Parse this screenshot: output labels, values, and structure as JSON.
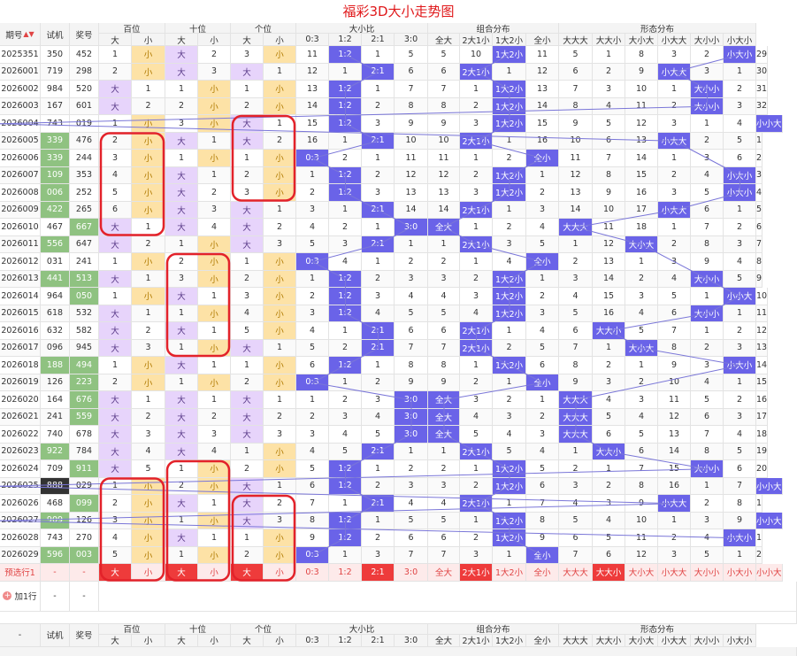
{
  "title": "福彩3D大小走势图",
  "header": {
    "qihao": "期号",
    "shiji": "试机",
    "jianghao": "奖号",
    "bai": "百位",
    "shi": "十位",
    "ge": "个位",
    "dxb": "大小比",
    "zuhe": "组合分布",
    "xingtai": "形态分布",
    "sub_da": "大",
    "sub_xiao": "小",
    "dxb_cols": [
      "0:3",
      "1:2",
      "2:1",
      "3:0"
    ],
    "zuhe_cols": [
      "全大",
      "2大1小",
      "1大2小",
      "全小"
    ],
    "xingtai_cols": [
      "大大大",
      "大大小",
      "大小大",
      "小大大",
      "大小小",
      "小大小",
      "小小大",
      "小小小"
    ]
  },
  "colors": {
    "blue": "#6a63e8",
    "purple": "#e7d4fb",
    "orange": "#fde2a6",
    "green": "#8fc281",
    "circle": "#e3222a",
    "title": "#e0191b"
  },
  "rows": [
    {
      "qi": "2025351",
      "sj": "350",
      "jh": "452",
      "c": [
        "1",
        "小",
        "大",
        "2",
        "3",
        "小",
        "11",
        "1:2",
        "1",
        "5",
        "5",
        "10",
        "1大2小",
        "11",
        "5",
        "1",
        "8",
        "3",
        "2",
        "小大小",
        "29"
      ]
    },
    {
      "qi": "2026001",
      "sj": "719",
      "jh": "298",
      "c": [
        "2",
        "小",
        "大",
        "3",
        "大",
        "1",
        "12",
        "1",
        "2:1",
        "6",
        "6",
        "2大1小",
        "1",
        "12",
        "6",
        "2",
        "9",
        "小大大",
        "3",
        "1",
        "30"
      ]
    },
    {
      "qi": "2026002",
      "sj": "984",
      "jh": "520",
      "c": [
        "大",
        "1",
        "1",
        "小",
        "1",
        "小",
        "13",
        "1:2",
        "1",
        "7",
        "7",
        "1",
        "1大2小",
        "13",
        "7",
        "3",
        "10",
        "1",
        "大小小",
        "2",
        "31"
      ]
    },
    {
      "qi": "2026003",
      "sj": "167",
      "jh": "601",
      "c": [
        "大",
        "2",
        "2",
        "小",
        "2",
        "小",
        "14",
        "1:2",
        "2",
        "8",
        "8",
        "2",
        "1大2小",
        "14",
        "8",
        "4",
        "11",
        "2",
        "大小小",
        "3",
        "32"
      ]
    },
    {
      "qi": "2026004",
      "sj": "743",
      "jh": "019",
      "c": [
        "1",
        "小",
        "3",
        "小",
        "大",
        "1",
        "15",
        "1:2",
        "3",
        "9",
        "9",
        "3",
        "1大2小",
        "15",
        "9",
        "5",
        "12",
        "3",
        "1",
        "4",
        "小小大"
      ]
    },
    {
      "qi": "2026005",
      "sj": "339",
      "jh": "476",
      "c": [
        "2",
        "小",
        "大",
        "1",
        "大",
        "2",
        "16",
        "1",
        "2:1",
        "10",
        "10",
        "2大1小",
        "1",
        "16",
        "10",
        "6",
        "13",
        "小大大",
        "2",
        "5",
        "1"
      ]
    },
    {
      "qi": "2026006",
      "sj": "339",
      "jh": "244",
      "c": [
        "3",
        "小",
        "1",
        "小",
        "1",
        "小",
        "0:3",
        "2",
        "1",
        "11",
        "11",
        "1",
        "2",
        "全小",
        "11",
        "7",
        "14",
        "1",
        "3",
        "6",
        "2"
      ]
    },
    {
      "qi": "2026007",
      "sj": "109",
      "jh": "353",
      "c": [
        "4",
        "小",
        "大",
        "1",
        "2",
        "小",
        "1",
        "1:2",
        "2",
        "12",
        "12",
        "2",
        "1大2小",
        "1",
        "12",
        "8",
        "15",
        "2",
        "4",
        "小大小",
        "3"
      ]
    },
    {
      "qi": "2026008",
      "sj": "006",
      "jh": "252",
      "c": [
        "5",
        "小",
        "大",
        "2",
        "3",
        "小",
        "2",
        "1:2",
        "3",
        "13",
        "13",
        "3",
        "1大2小",
        "2",
        "13",
        "9",
        "16",
        "3",
        "5",
        "小大小",
        "4"
      ]
    },
    {
      "qi": "2026009",
      "sj": "422",
      "jh": "265",
      "c": [
        "6",
        "小",
        "大",
        "3",
        "大",
        "1",
        "3",
        "1",
        "2:1",
        "14",
        "14",
        "2大1小",
        "1",
        "3",
        "14",
        "10",
        "17",
        "小大大",
        "6",
        "1",
        "5"
      ]
    },
    {
      "qi": "2026010",
      "sj": "467",
      "jh": "667",
      "c": [
        "大",
        "1",
        "大",
        "4",
        "大",
        "2",
        "4",
        "2",
        "1",
        "3:0",
        "全大",
        "1",
        "2",
        "4",
        "大大大",
        "11",
        "18",
        "1",
        "7",
        "2",
        "6"
      ]
    },
    {
      "qi": "2026011",
      "sj": "556",
      "jh": "647",
      "c": [
        "大",
        "2",
        "1",
        "小",
        "大",
        "3",
        "5",
        "3",
        "2:1",
        "1",
        "1",
        "2大1小",
        "3",
        "5",
        "1",
        "12",
        "大小大",
        "2",
        "8",
        "3",
        "7"
      ]
    },
    {
      "qi": "2026012",
      "sj": "031",
      "jh": "241",
      "c": [
        "1",
        "小",
        "2",
        "小",
        "1",
        "小",
        "0:3",
        "4",
        "1",
        "2",
        "2",
        "1",
        "4",
        "全小",
        "2",
        "13",
        "1",
        "3",
        "9",
        "4",
        "8"
      ]
    },
    {
      "qi": "2026013",
      "sj": "441",
      "jh": "513",
      "c": [
        "大",
        "1",
        "3",
        "小",
        "2",
        "小",
        "1",
        "1:2",
        "2",
        "3",
        "3",
        "2",
        "1大2小",
        "1",
        "3",
        "14",
        "2",
        "4",
        "大小小",
        "5",
        "9"
      ]
    },
    {
      "qi": "2026014",
      "sj": "964",
      "jh": "050",
      "c": [
        "1",
        "小",
        "大",
        "1",
        "3",
        "小",
        "2",
        "1:2",
        "3",
        "4",
        "4",
        "3",
        "1大2小",
        "2",
        "4",
        "15",
        "3",
        "5",
        "1",
        "小小大",
        "10"
      ]
    },
    {
      "qi": "2026015",
      "sj": "618",
      "jh": "532",
      "c": [
        "大",
        "1",
        "1",
        "小",
        "4",
        "小",
        "3",
        "1:2",
        "4",
        "5",
        "5",
        "4",
        "1大2小",
        "3",
        "5",
        "16",
        "4",
        "6",
        "大小小",
        "1",
        "11"
      ]
    },
    {
      "qi": "2026016",
      "sj": "632",
      "jh": "582",
      "c": [
        "大",
        "2",
        "大",
        "1",
        "5",
        "小",
        "4",
        "1",
        "2:1",
        "6",
        "6",
        "2大1小",
        "1",
        "4",
        "6",
        "大大小",
        "5",
        "7",
        "1",
        "2",
        "12"
      ]
    },
    {
      "qi": "2026017",
      "sj": "096",
      "jh": "945",
      "c": [
        "大",
        "3",
        "1",
        "小",
        "大",
        "1",
        "5",
        "2",
        "2:1",
        "7",
        "7",
        "2大1小",
        "2",
        "5",
        "7",
        "1",
        "大小大",
        "8",
        "2",
        "3",
        "13"
      ]
    },
    {
      "qi": "2026018",
      "sj": "188",
      "jh": "494",
      "c": [
        "1",
        "小",
        "大",
        "1",
        "1",
        "小",
        "6",
        "1:2",
        "1",
        "8",
        "8",
        "1",
        "1大2小",
        "6",
        "8",
        "2",
        "1",
        "9",
        "3",
        "小大小",
        "14"
      ]
    },
    {
      "qi": "2026019",
      "sj": "126",
      "jh": "223",
      "c": [
        "2",
        "小",
        "1",
        "小",
        "2",
        "小",
        "0:3",
        "1",
        "2",
        "9",
        "9",
        "2",
        "1",
        "全小",
        "9",
        "3",
        "2",
        "10",
        "4",
        "1",
        "15"
      ]
    },
    {
      "qi": "2026020",
      "sj": "164",
      "jh": "676",
      "c": [
        "大",
        "1",
        "大",
        "1",
        "大",
        "1",
        "1",
        "2",
        "3",
        "3:0",
        "全大",
        "3",
        "2",
        "1",
        "大大大",
        "4",
        "3",
        "11",
        "5",
        "2",
        "16"
      ]
    },
    {
      "qi": "2026021",
      "sj": "241",
      "jh": "559",
      "c": [
        "大",
        "2",
        "大",
        "2",
        "大",
        "2",
        "2",
        "3",
        "4",
        "3:0",
        "全大",
        "4",
        "3",
        "2",
        "大大大",
        "5",
        "4",
        "12",
        "6",
        "3",
        "17"
      ]
    },
    {
      "qi": "2026022",
      "sj": "740",
      "jh": "678",
      "c": [
        "大",
        "3",
        "大",
        "3",
        "大",
        "3",
        "3",
        "4",
        "5",
        "3:0",
        "全大",
        "5",
        "4",
        "3",
        "大大大",
        "6",
        "5",
        "13",
        "7",
        "4",
        "18"
      ]
    },
    {
      "qi": "2026023",
      "sj": "922",
      "jh": "784",
      "c": [
        "大",
        "4",
        "大",
        "4",
        "1",
        "小",
        "4",
        "5",
        "2:1",
        "1",
        "1",
        "2大1小",
        "5",
        "4",
        "1",
        "大大小",
        "6",
        "14",
        "8",
        "5",
        "19"
      ]
    },
    {
      "qi": "2026024",
      "sj": "709",
      "jh": "911",
      "c": [
        "大",
        "5",
        "1",
        "小",
        "2",
        "小",
        "5",
        "1:2",
        "1",
        "2",
        "2",
        "1",
        "1大2小",
        "5",
        "2",
        "1",
        "7",
        "15",
        "大小小",
        "6",
        "20"
      ]
    },
    {
      "qi": "2026025",
      "sj": "888",
      "jh": "029",
      "c": [
        "1",
        "小",
        "2",
        "小",
        "大",
        "1",
        "6",
        "1:2",
        "2",
        "3",
        "3",
        "2",
        "1大2小",
        "6",
        "3",
        "2",
        "8",
        "16",
        "1",
        "7",
        "小小大"
      ]
    },
    {
      "qi": "2026026",
      "sj": "468",
      "jh": "099",
      "c": [
        "2",
        "小",
        "大",
        "1",
        "大",
        "2",
        "7",
        "1",
        "2:1",
        "4",
        "4",
        "2大1小",
        "1",
        "7",
        "4",
        "3",
        "9",
        "小大大",
        "2",
        "8",
        "1"
      ]
    },
    {
      "qi": "2026027",
      "sj": "909",
      "jh": "126",
      "c": [
        "3",
        "小",
        "1",
        "小",
        "大",
        "3",
        "8",
        "1:2",
        "1",
        "5",
        "5",
        "1",
        "1大2小",
        "8",
        "5",
        "4",
        "10",
        "1",
        "3",
        "9",
        "小小大"
      ]
    },
    {
      "qi": "2026028",
      "sj": "743",
      "jh": "270",
      "c": [
        "4",
        "小",
        "大",
        "1",
        "1",
        "小",
        "9",
        "1:2",
        "2",
        "6",
        "6",
        "2",
        "1大2小",
        "9",
        "6",
        "5",
        "11",
        "2",
        "4",
        "小大小",
        "1"
      ]
    },
    {
      "qi": "2026029",
      "sj": "596",
      "jh": "003",
      "c": [
        "5",
        "小",
        "1",
        "小",
        "2",
        "小",
        "0:3",
        "1",
        "3",
        "7",
        "7",
        "3",
        "1",
        "全小",
        "7",
        "6",
        "12",
        "3",
        "5",
        "1",
        "2"
      ]
    }
  ],
  "predict": {
    "label": "预选行1",
    "dash": "-",
    "c": [
      "大",
      "小",
      "大",
      "小",
      "大",
      "小",
      "0:3",
      "1:2",
      "2:1",
      "3:0",
      "全大",
      "2大1小",
      "1大2小",
      "全小",
      "大大大",
      "大大小",
      "大小大",
      "小大大",
      "大小小",
      "小大小",
      "小小大"
    ]
  },
  "add_row": {
    "label": "加1行",
    "dash": "-"
  },
  "footer": {
    "dash": "-"
  }
}
